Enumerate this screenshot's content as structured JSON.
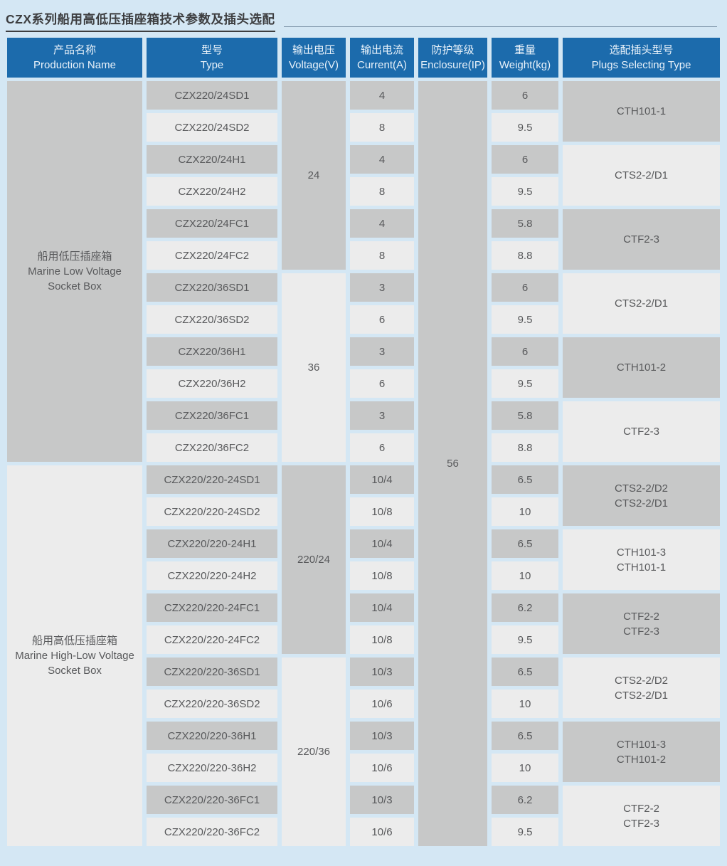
{
  "page": {
    "title": "CZX系列船用高低压插座箱技术参数及插头选配"
  },
  "colors": {
    "page_background": "#d4e7f4",
    "header_background": "#1c6bac",
    "header_text": "#e9f2fa",
    "cell_gray": "#c7c8c8",
    "cell_light": "#ececec",
    "cell_text": "#58595b",
    "title_text": "#3d3e40"
  },
  "table": {
    "headers": [
      {
        "zh": "产品名称",
        "en": "Production Name"
      },
      {
        "zh": "型号",
        "en": "Type"
      },
      {
        "zh": "输出电压",
        "en": "Voltage(V)"
      },
      {
        "zh": "输出电流",
        "en": "Current(A)"
      },
      {
        "zh": "防护等级",
        "en": "Enclosure(IP)"
      },
      {
        "zh": "重量",
        "en": "Weight(kg)"
      },
      {
        "zh": "选配插头型号",
        "en": "Plugs Selecting Type"
      }
    ],
    "products": [
      {
        "zh": "船用低压插座箱",
        "en": "Marine Low Voltage Socket Box",
        "rows": 12
      },
      {
        "zh": "船用高低压插座箱",
        "en": "Marine High-Low Voltage Socket Box",
        "rows": 12
      }
    ],
    "enclosure_ip": "56",
    "voltage_groups": [
      {
        "label": "24",
        "rows": 6
      },
      {
        "label": "36",
        "rows": 6
      },
      {
        "label": "220/24",
        "rows": 6
      },
      {
        "label": "220/36",
        "rows": 6
      }
    ],
    "plug_groups": [
      {
        "lines": [
          "CTH101-1"
        ],
        "rows": 2
      },
      {
        "lines": [
          "CTS2-2/D1"
        ],
        "rows": 2
      },
      {
        "lines": [
          "CTF2-3"
        ],
        "rows": 2
      },
      {
        "lines": [
          "CTS2-2/D1"
        ],
        "rows": 2
      },
      {
        "lines": [
          "CTH101-2"
        ],
        "rows": 2
      },
      {
        "lines": [
          "CTF2-3"
        ],
        "rows": 2
      },
      {
        "lines": [
          "CTS2-2/D2",
          "CTS2-2/D1"
        ],
        "rows": 2
      },
      {
        "lines": [
          "CTH101-3",
          "CTH101-1"
        ],
        "rows": 2
      },
      {
        "lines": [
          "CTF2-2",
          "CTF2-3"
        ],
        "rows": 2
      },
      {
        "lines": [
          "CTS2-2/D2",
          "CTS2-2/D1"
        ],
        "rows": 2
      },
      {
        "lines": [
          "CTH101-3",
          "CTH101-2"
        ],
        "rows": 2
      },
      {
        "lines": [
          "CTF2-2",
          "CTF2-3"
        ],
        "rows": 2
      }
    ],
    "rows": [
      {
        "type": "CZX220/24SD1",
        "current": "4",
        "weight": "6"
      },
      {
        "type": "CZX220/24SD2",
        "current": "8",
        "weight": "9.5"
      },
      {
        "type": "CZX220/24H1",
        "current": "4",
        "weight": "6"
      },
      {
        "type": "CZX220/24H2",
        "current": "8",
        "weight": "9.5"
      },
      {
        "type": "CZX220/24FC1",
        "current": "4",
        "weight": "5.8"
      },
      {
        "type": "CZX220/24FC2",
        "current": "8",
        "weight": "8.8"
      },
      {
        "type": "CZX220/36SD1",
        "current": "3",
        "weight": "6"
      },
      {
        "type": "CZX220/36SD2",
        "current": "6",
        "weight": "9.5"
      },
      {
        "type": "CZX220/36H1",
        "current": "3",
        "weight": "6"
      },
      {
        "type": "CZX220/36H2",
        "current": "6",
        "weight": "9.5"
      },
      {
        "type": "CZX220/36FC1",
        "current": "3",
        "weight": "5.8"
      },
      {
        "type": "CZX220/36FC2",
        "current": "6",
        "weight": "8.8"
      },
      {
        "type": "CZX220/220-24SD1",
        "current": "10/4",
        "weight": "6.5"
      },
      {
        "type": "CZX220/220-24SD2",
        "current": "10/8",
        "weight": "10"
      },
      {
        "type": "CZX220/220-24H1",
        "current": "10/4",
        "weight": "6.5"
      },
      {
        "type": "CZX220/220-24H2",
        "current": "10/8",
        "weight": "10"
      },
      {
        "type": "CZX220/220-24FC1",
        "current": "10/4",
        "weight": "6.2"
      },
      {
        "type": "CZX220/220-24FC2",
        "current": "10/8",
        "weight": "9.5"
      },
      {
        "type": "CZX220/220-36SD1",
        "current": "10/3",
        "weight": "6.5"
      },
      {
        "type": "CZX220/220-36SD2",
        "current": "10/6",
        "weight": "10"
      },
      {
        "type": "CZX220/220-36H1",
        "current": "10/3",
        "weight": "6.5"
      },
      {
        "type": "CZX220/220-36H2",
        "current": "10/6",
        "weight": "10"
      },
      {
        "type": "CZX220/220-36FC1",
        "current": "10/3",
        "weight": "6.2"
      },
      {
        "type": "CZX220/220-36FC2",
        "current": "10/6",
        "weight": "9.5"
      }
    ]
  }
}
